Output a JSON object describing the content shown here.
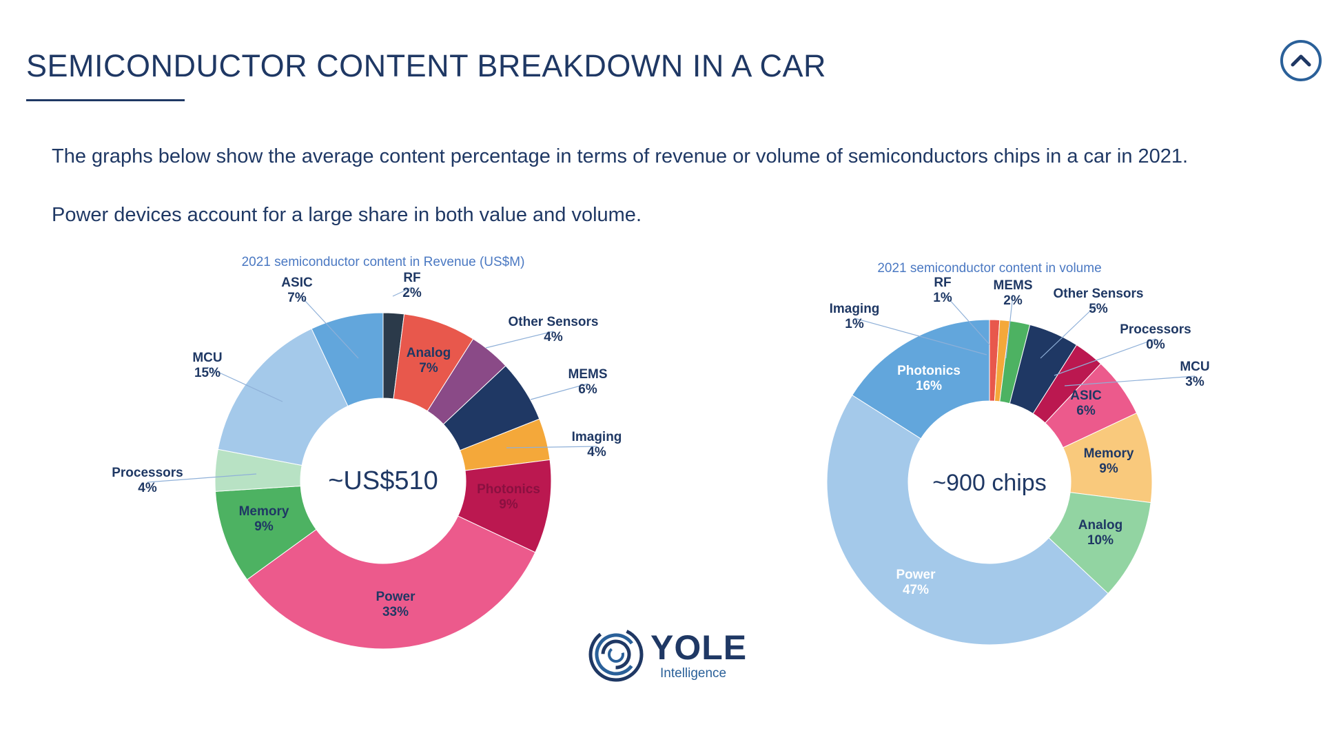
{
  "header": {
    "title": "SEMICONDUCTOR CONTENT BREAKDOWN IN A CAR",
    "nav_icon": "chevron-up-icon"
  },
  "intro": {
    "line1": "The graphs below show the average content percentage in terms of revenue or volume of semiconductors chips in a car in 2021.",
    "line2": "Power devices account for a large share in both value and volume."
  },
  "logo": {
    "name": "YOLE",
    "sub": "Intelligence"
  },
  "chart_data": [
    {
      "type": "donut",
      "title": "2021 semiconductor content in Revenue (US$M)",
      "center_label": "~US$510",
      "slices": [
        {
          "name": "RF",
          "value": 2,
          "label": "2%",
          "color": "#2b3a4a"
        },
        {
          "name": "Analog",
          "value": 7,
          "label": "7%",
          "color": "#e8584c"
        },
        {
          "name": "Other Sensors",
          "value": 4,
          "label": "4%",
          "color": "#8a4a87"
        },
        {
          "name": "MEMS",
          "value": 6,
          "label": "6%",
          "color": "#1f3864"
        },
        {
          "name": "Imaging",
          "value": 4,
          "label": "4%",
          "color": "#f4a83a"
        },
        {
          "name": "Photonics",
          "value": 9,
          "label": "9%",
          "color": "#bb1850"
        },
        {
          "name": "Power",
          "value": 33,
          "label": "33%",
          "color": "#ec5a8c"
        },
        {
          "name": "Memory",
          "value": 9,
          "label": "9%",
          "color": "#4db262"
        },
        {
          "name": "Processors",
          "value": 4,
          "label": "4%",
          "color": "#b8e2c4"
        },
        {
          "name": "MCU",
          "value": 15,
          "label": "15%",
          "color": "#a4c9ea"
        },
        {
          "name": "ASIC",
          "value": 7,
          "label": "7%",
          "color": "#62a6dc"
        }
      ]
    },
    {
      "type": "donut",
      "title": "2021 semiconductor content in volume",
      "center_label": "~900 chips",
      "slices": [
        {
          "name": "RF",
          "value": 1,
          "label": "1%",
          "color": "#e8584c"
        },
        {
          "name": "Imaging",
          "value": 1,
          "label": "1%",
          "color": "#f4a83a"
        },
        {
          "name": "MEMS",
          "value": 2,
          "label": "2%",
          "color": "#4db262"
        },
        {
          "name": "Other Sensors",
          "value": 5,
          "label": "5%",
          "color": "#1f3864"
        },
        {
          "name": "Processors",
          "value": 0,
          "label": "0%",
          "color": "#8a4a87"
        },
        {
          "name": "MCU",
          "value": 3,
          "label": "3%",
          "color": "#bb1850"
        },
        {
          "name": "ASIC",
          "value": 6,
          "label": "6%",
          "color": "#ec5a8c"
        },
        {
          "name": "Memory",
          "value": 9,
          "label": "9%",
          "color": "#f9c97c"
        },
        {
          "name": "Analog",
          "value": 10,
          "label": "10%",
          "color": "#92d4a2"
        },
        {
          "name": "Power",
          "value": 47,
          "label": "47%",
          "color": "#a4c9ea"
        },
        {
          "name": "Photonics",
          "value": 16,
          "label": "16%",
          "color": "#62a6dc"
        }
      ]
    }
  ]
}
